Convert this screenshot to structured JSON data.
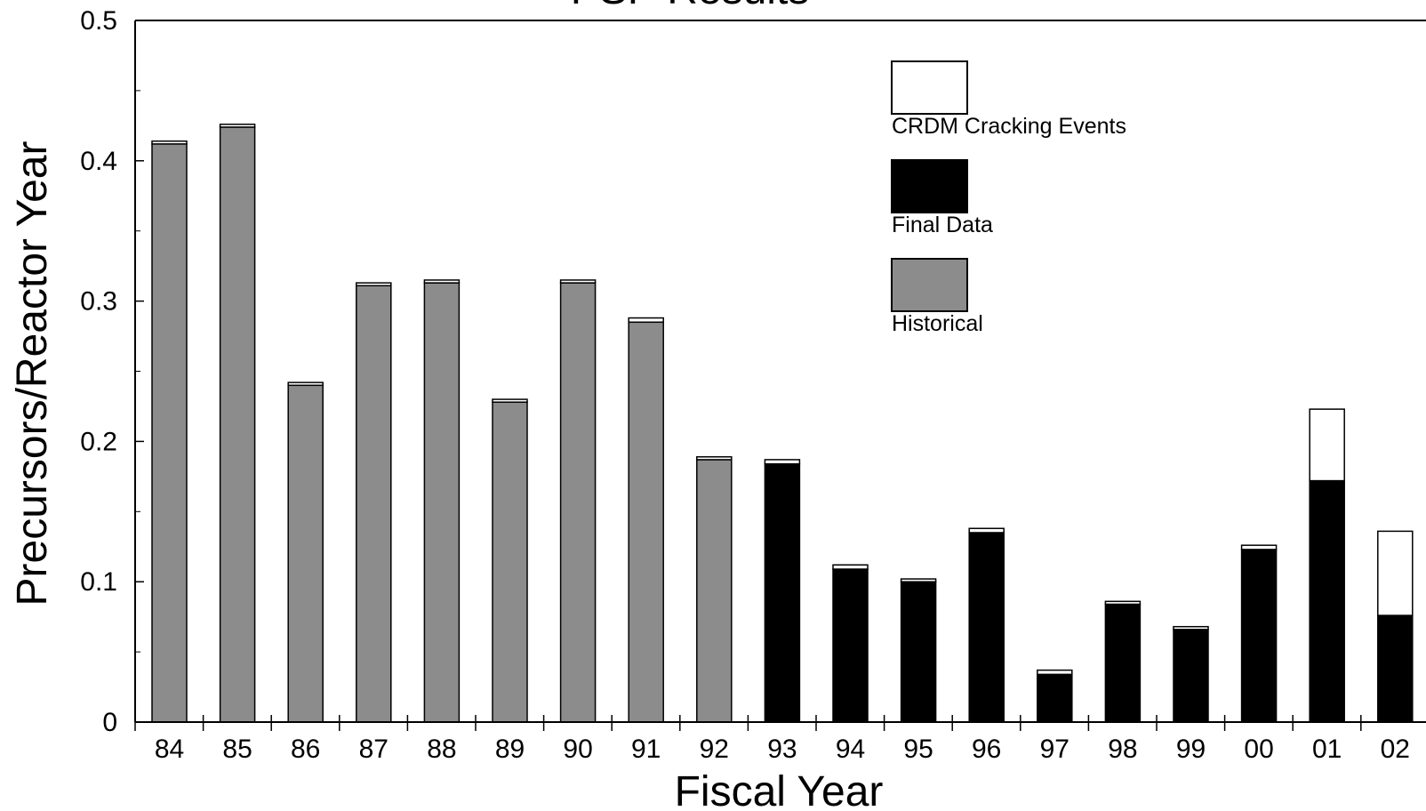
{
  "chart_data": {
    "type": "bar",
    "stacked": true,
    "title": "PSP Results",
    "xlabel": "Fiscal Year",
    "ylabel": "Precursors/Reactor Year",
    "ylim": [
      0,
      0.5
    ],
    "yticks": [
      "0",
      "0.1",
      "0.2",
      "0.3",
      "0.4",
      "0.5"
    ],
    "categories": [
      "84",
      "85",
      "86",
      "87",
      "88",
      "89",
      "90",
      "91",
      "92",
      "93",
      "94",
      "95",
      "96",
      "97",
      "98",
      "99",
      "00",
      "01",
      "02"
    ],
    "series": [
      {
        "name": "Historical",
        "color": "#8c8c8c",
        "values": [
          0.412,
          0.424,
          0.24,
          0.311,
          0.313,
          0.228,
          0.313,
          0.285,
          0.187,
          0,
          0,
          0,
          0,
          0,
          0,
          0,
          0,
          0,
          0
        ]
      },
      {
        "name": "Final Data",
        "color": "#000000",
        "values": [
          0,
          0,
          0,
          0,
          0,
          0,
          0,
          0,
          0,
          0.184,
          0.109,
          0.1,
          0.135,
          0.034,
          0.084,
          0.066,
          0.123,
          0.172,
          0.076
        ]
      },
      {
        "name": "CRDM Cracking Events",
        "color": "#ffffff",
        "values": [
          0.002,
          0.002,
          0.002,
          0.002,
          0.002,
          0.002,
          0.002,
          0.003,
          0.002,
          0.003,
          0.003,
          0.002,
          0.003,
          0.003,
          0.002,
          0.002,
          0.003,
          0.051,
          0.06
        ]
      }
    ],
    "legend": {
      "placement": "top-center",
      "entries": [
        "CRDM Cracking Events",
        "Final Data",
        "Historical"
      ]
    },
    "grid": false
  }
}
